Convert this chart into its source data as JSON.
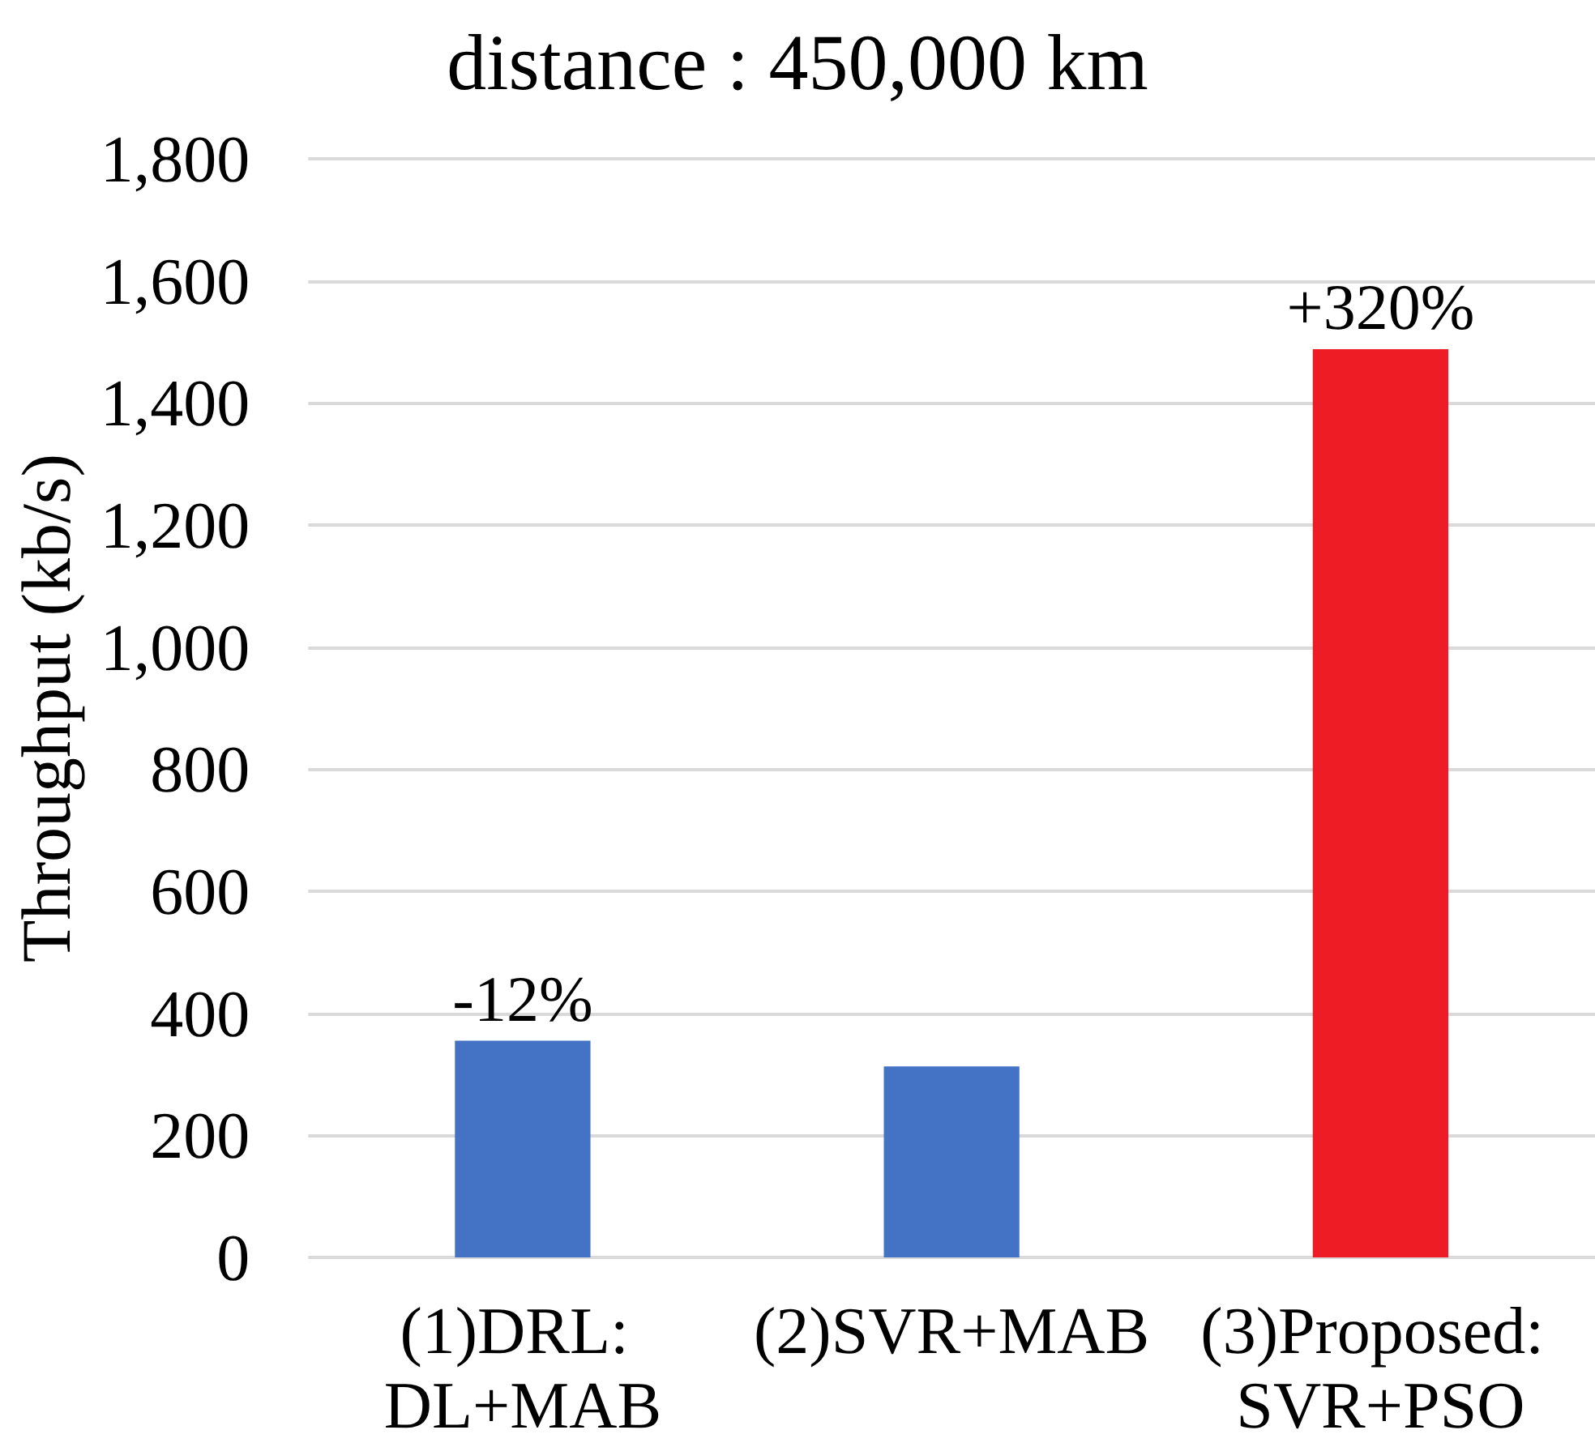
{
  "chart_data": {
    "type": "bar",
    "title": "distance : 450,000 km",
    "ylabel": "Throughput (kb/s)",
    "categories": [
      "(1)DRL: DL+MAB",
      "(2)SVR+MAB",
      "(3)Proposed: SVR+PSO"
    ],
    "values": [
      355,
      313,
      1488
    ],
    "colors": [
      "#4472c4",
      "#4472c4",
      "#ee1c24"
    ],
    "ylim": [
      0,
      1800
    ],
    "yticks": [
      0,
      200,
      400,
      600,
      800,
      {
        "value": 1000,
        "label": "1,000"
      },
      {
        "value": 1200,
        "label": "1,200"
      },
      {
        "value": 1400,
        "label": "1,400"
      },
      {
        "value": 1600,
        "label": "1,600"
      },
      {
        "value": 1800,
        "label": "1,800"
      }
    ],
    "grid": "y",
    "annotations": [
      {
        "text": "-12%",
        "x": "(1)DRL: DL+MAB",
        "y": 355
      },
      {
        "text": "+320%",
        "x": "(3)Proposed: SVR+PSO",
        "y": 1488
      }
    ]
  }
}
